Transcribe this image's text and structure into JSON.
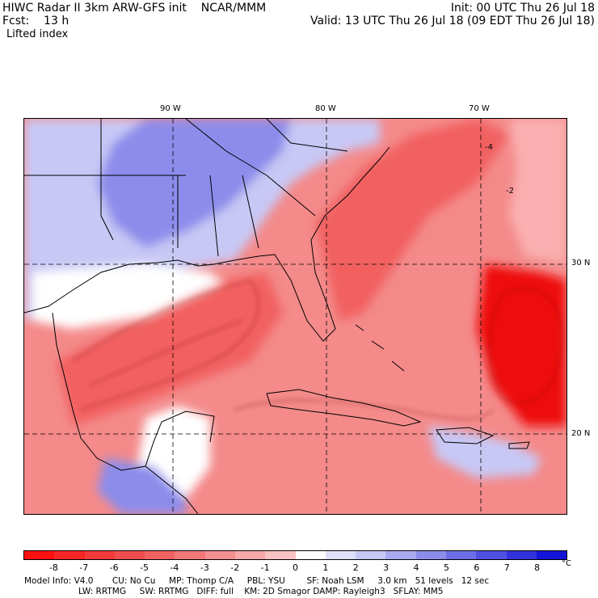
{
  "header": {
    "title": "HIWC Radar II 3km ARW-GFS init    NCAR/MMM",
    "forecast": "Fcst:    13 h",
    "field": "Lifted index",
    "init": "Init: 00 UTC Thu 26 Jul 18",
    "valid": "Valid: 13 UTC Thu 26 Jul 18 (09 EDT Thu 26 Jul 18)"
  },
  "map": {
    "longitude_labels": [
      "90 W",
      "80 W",
      "70 W"
    ],
    "latitude_labels": [
      "30 N",
      "20 N"
    ],
    "contour_labels": [
      "-4",
      "-2"
    ],
    "colors": {
      "strong_negative": "#ee1111",
      "negative": "#f26060",
      "weak_negative": "#fab0b0",
      "neutral": "#ffffff",
      "weak_positive": "#c8c8f5",
      "positive": "#8c8ceb",
      "strong_positive": "#5050e0",
      "land_line": "#000000",
      "contour_line": "#7a0000"
    }
  },
  "colorbar": {
    "ticks": [
      "-8",
      "-7",
      "-6",
      "-5",
      "-4",
      "-3",
      "-2",
      "-1",
      "0",
      "1",
      "2",
      "3",
      "4",
      "5",
      "6",
      "7",
      "8"
    ],
    "unit": "°C",
    "colors": [
      "#ff1010",
      "#fa2525",
      "#f53a3a",
      "#f04e4e",
      "#f06262",
      "#f27878",
      "#f49090",
      "#f7a8a8",
      "#fac3c3",
      "#ffffff",
      "#e0e0fa",
      "#c8c8f5",
      "#aaaaf0",
      "#8c8ceb",
      "#6e6ee6",
      "#5050e0",
      "#3232dc",
      "#1414d8"
    ]
  },
  "footer": {
    "line1": "Model Info: V4.0       CU: No Cu     MP: Thomp C/A     PBL: YSU        SF: Noah LSM     3.0 km   51 levels   12 sec",
    "line2": "LW: RRTMG     SW: RRTMG   DIFF: full    KM: 2D Smagor DAMP: Rayleigh3   SFLAY: MM5"
  }
}
